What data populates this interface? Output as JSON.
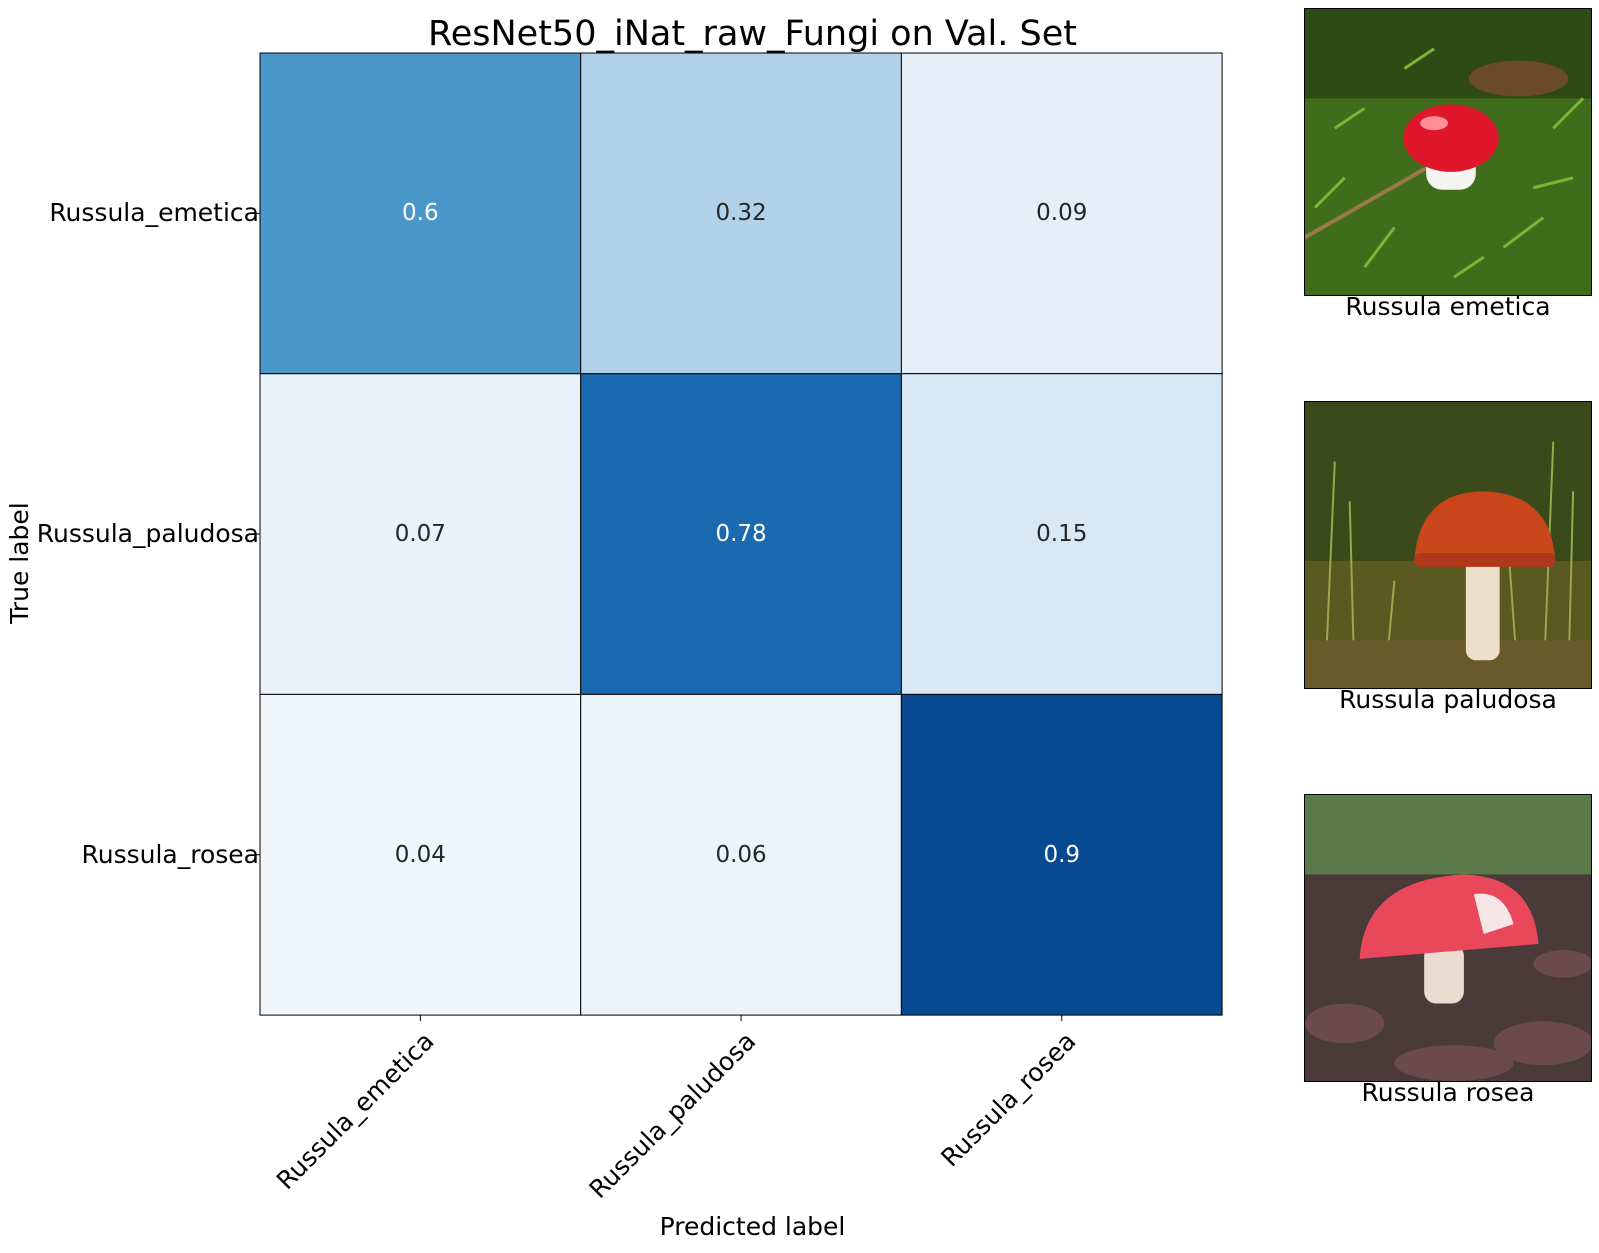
{
  "chart_data": {
    "type": "heatmap",
    "title": "ResNet50_iNat_raw_Fungi on Val. Set",
    "xlabel": "Predicted label",
    "ylabel": "True label",
    "x_categories": [
      "Russula_emetica",
      "Russula_paludosa",
      "Russula_rosea"
    ],
    "y_categories": [
      "Russula_emetica",
      "Russula_paludosa",
      "Russula_rosea"
    ],
    "values": [
      [
        0.6,
        0.32,
        0.09
      ],
      [
        0.07,
        0.78,
        0.15
      ],
      [
        0.04,
        0.06,
        0.9
      ]
    ],
    "value_labels": [
      [
        "0.6",
        "0.32",
        "0.09"
      ],
      [
        "0.07",
        "0.78",
        "0.15"
      ],
      [
        "0.04",
        "0.06",
        "0.9"
      ]
    ],
    "colormap": "Blues",
    "range": [
      0,
      1
    ],
    "grid": true
  },
  "examples": [
    {
      "caption": "Russula emetica",
      "icon": "red-cap-mushroom-in-moss-photo",
      "cap_color": "#e0172b"
    },
    {
      "caption": "Russula paludosa",
      "icon": "orange-cap-mushroom-in-grass-photo",
      "cap_color": "#c8461a"
    },
    {
      "caption": "Russula rosea",
      "icon": "pink-cap-mushroom-in-leaves-photo",
      "cap_color": "#e8485a"
    }
  ]
}
